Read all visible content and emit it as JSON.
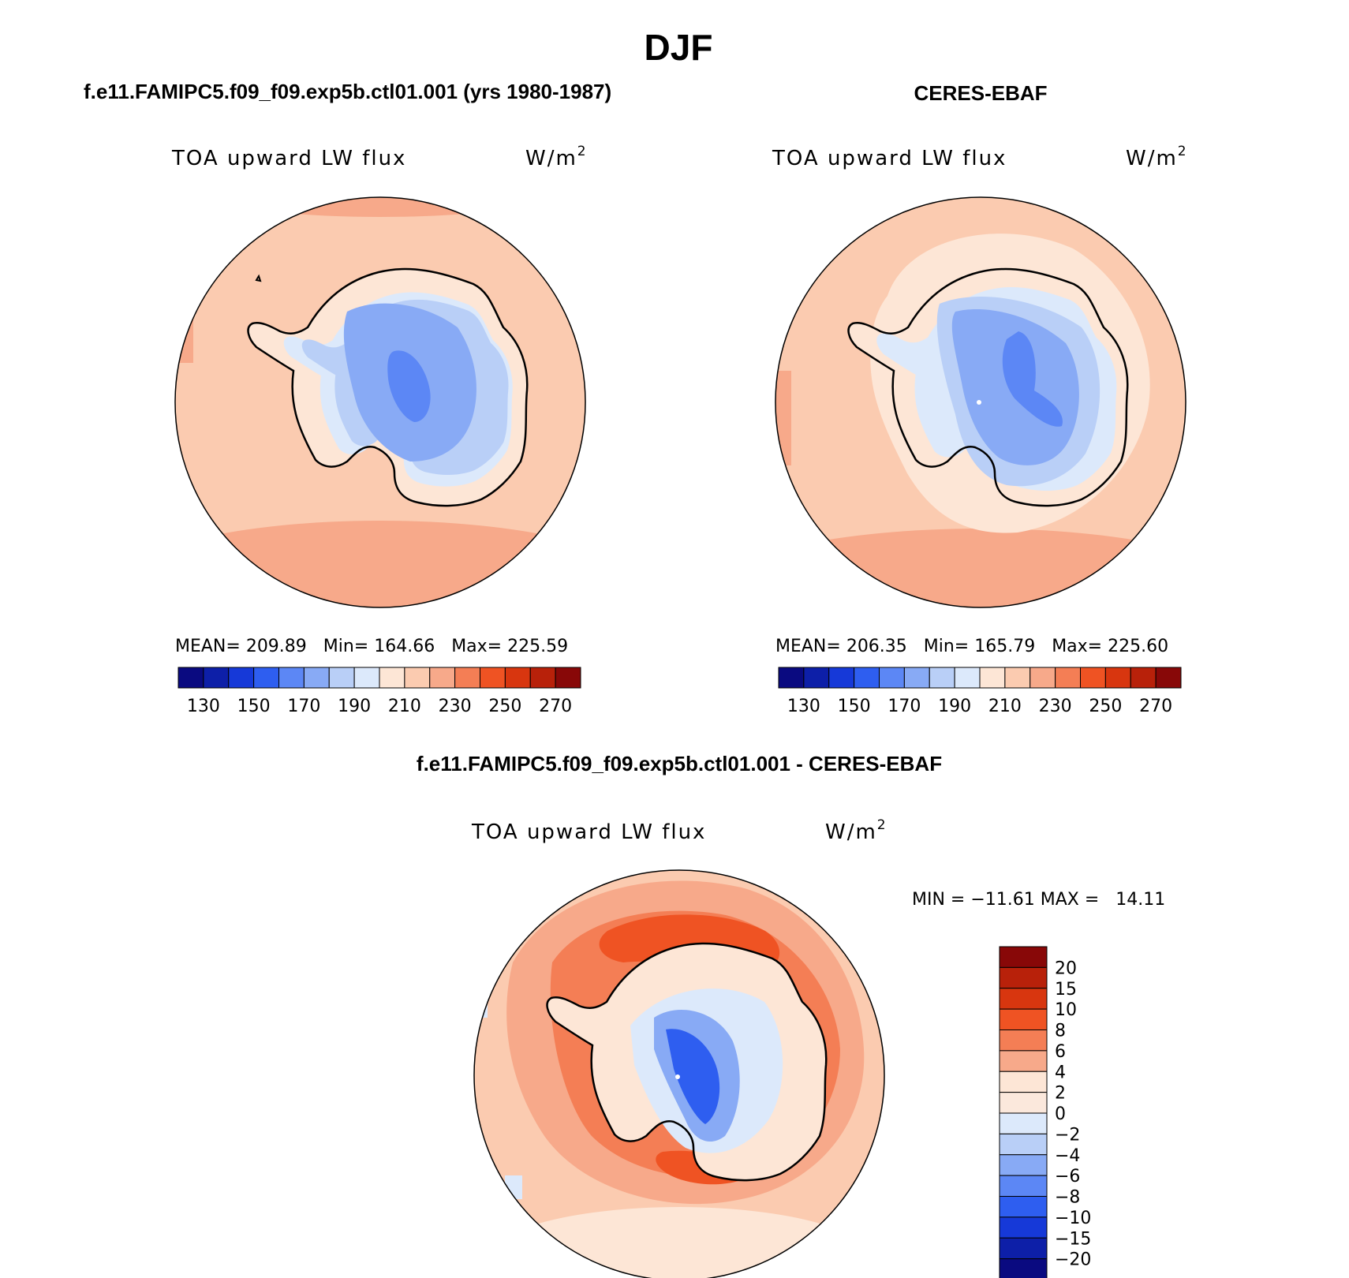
{
  "title": "DJF",
  "panel_left": {
    "case_title": "f.e11.FAMIPC5.f09_f09.exp5b.ctl01.001 (yrs 1980-1987)",
    "variable": "TOA upward LW flux",
    "units_base": "W/m",
    "units_exp": "2",
    "stats": "MEAN= 209.89   Min= 164.66   Max= 225.59"
  },
  "panel_right": {
    "case_title": "CERES-EBAF",
    "variable": "TOA upward LW flux",
    "units_base": "W/m",
    "units_exp": "2",
    "stats": "MEAN= 206.35   Min= 165.79   Max= 225.60"
  },
  "panel_diff": {
    "case_title": "f.e11.FAMIPC5.f09_f09.exp5b.ctl01.001 - CERES-EBAF",
    "variable": "TOA upward LW flux",
    "units_base": "W/m",
    "units_exp": "2",
    "minmax": "MIN = −11.61 MAX =   14.11"
  },
  "colorbar_abs": {
    "colors": [
      "#0a0a80",
      "#0d1fa8",
      "#1639d8",
      "#2e5ef0",
      "#5c87f5",
      "#88aaf5",
      "#b9cff7",
      "#dce9fb",
      "#fde6d6",
      "#fbcbb0",
      "#f7a98a",
      "#f47e55",
      "#ef5323",
      "#d8360f",
      "#b8210a",
      "#880808"
    ],
    "tick_labels": [
      "130",
      "150",
      "170",
      "190",
      "210",
      "230",
      "250",
      "270"
    ]
  },
  "colorbar_diff": {
    "colors": [
      "#880808",
      "#b8210a",
      "#d8360f",
      "#ef5323",
      "#f47e55",
      "#f7a98a",
      "#fde6d6",
      "#fbe8dc",
      "#dce9fb",
      "#b9cff7",
      "#88aaf5",
      "#5c87f5",
      "#2e5ef0",
      "#1639d8",
      "#0d1fa8",
      "#0a0a80"
    ],
    "tick_labels": [
      "20",
      "15",
      "10",
      "8",
      "6",
      "4",
      "2",
      "0",
      "−2",
      "−4",
      "−6",
      "−8",
      "−10",
      "−15",
      "−20"
    ]
  }
}
